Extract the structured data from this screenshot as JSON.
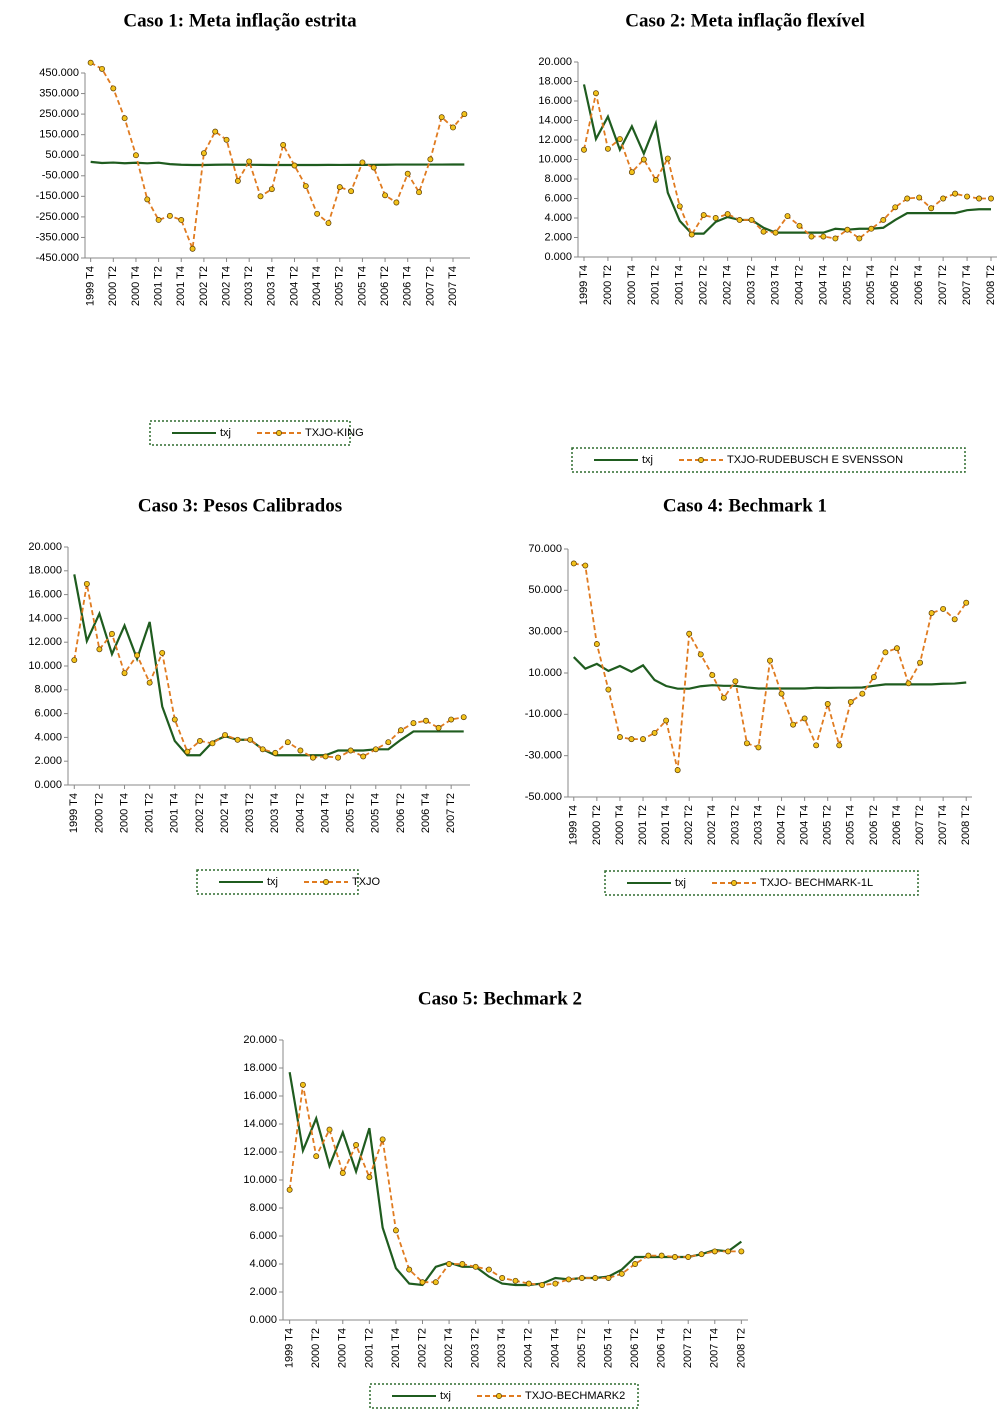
{
  "chart_data": [
    {
      "type": "line",
      "title": "Caso 1: Meta inflação estrita",
      "categories": [
        "1999 T4",
        null,
        "2000 T2",
        null,
        "2000 T4",
        null,
        "2001 T2",
        null,
        "2001 T4",
        null,
        "2002 T2",
        null,
        "2002 T4",
        null,
        "2003 T2",
        null,
        "2003 T4",
        null,
        "2004 T2",
        null,
        "2004 T4",
        null,
        "2005 T2",
        null,
        "2005 T4",
        null,
        "2006 T2",
        null,
        "2006 T4",
        null,
        "2007 T2",
        null,
        "2007 T4",
        null
      ],
      "series": [
        {
          "name": "txj",
          "color": "#1f5c1f",
          "values": [
            17.7,
            12.1,
            14.4,
            11.0,
            13.4,
            10.6,
            13.7,
            6.6,
            3.7,
            2.4,
            2.4,
            3.6,
            4.1,
            3.8,
            3.8,
            3.0,
            2.5,
            2.5,
            2.5,
            2.5,
            2.5,
            2.9,
            2.8,
            2.9,
            2.9,
            3.0,
            3.8,
            4.5,
            4.5,
            4.5,
            4.5,
            4.5,
            4.8,
            4.9
          ]
        },
        {
          "name": "TXJO-KING",
          "color": "#e07b20",
          "values": [
            500,
            470,
            375,
            230,
            50,
            -165,
            -265,
            -245,
            -265,
            -405,
            60,
            165,
            125,
            -75,
            20,
            -150,
            -115,
            100,
            0,
            -100,
            -235,
            -280,
            -105,
            -125,
            15,
            -10,
            -145,
            -180,
            -40,
            -130,
            30,
            235,
            185,
            250
          ]
        }
      ],
      "ylim": [
        -450,
        450
      ],
      "yticks": [
        {
          "value": -450,
          "label": "-450.000"
        },
        {
          "value": -350,
          "label": "-350.000"
        },
        {
          "value": -250,
          "label": "-250.000"
        },
        {
          "value": -150,
          "label": "-150.000"
        },
        {
          "value": -50,
          "label": "-50.000"
        },
        {
          "value": 50,
          "label": "50.000"
        },
        {
          "value": 150,
          "label": "150.000"
        },
        {
          "value": 250,
          "label": "250.000"
        },
        {
          "value": 350,
          "label": "350.000"
        },
        {
          "value": 450,
          "label": "450.000"
        }
      ]
    },
    {
      "type": "line",
      "title": "Caso 2: Meta inflação flexível",
      "categories": [
        "1999 T4",
        null,
        "2000 T2",
        null,
        "2000 T4",
        null,
        "2001 T2",
        null,
        "2001 T4",
        null,
        "2002 T2",
        null,
        "2002 T4",
        null,
        "2003 T2",
        null,
        "2003 T4",
        null,
        "2004 T2",
        null,
        "2004 T4",
        null,
        "2005 T2",
        null,
        "2005 T4",
        null,
        "2006 T2",
        null,
        "2006 T4",
        null,
        "2007 T2",
        null,
        "2007 T4",
        null,
        "2008 T2"
      ],
      "series": [
        {
          "name": "txj",
          "color": "#1f5c1f",
          "values": [
            17.7,
            12.1,
            14.4,
            11.0,
            13.4,
            10.6,
            13.7,
            6.6,
            3.7,
            2.4,
            2.4,
            3.6,
            4.1,
            3.8,
            3.8,
            3.0,
            2.5,
            2.5,
            2.5,
            2.5,
            2.5,
            2.9,
            2.8,
            2.9,
            2.9,
            3.0,
            3.8,
            4.5,
            4.5,
            4.5,
            4.5,
            4.5,
            4.8,
            4.9,
            4.9
          ]
        },
        {
          "name": "TXJO-RUDEBUSCH  E SVENSSON",
          "color": "#e07b20",
          "values": [
            11.0,
            16.8,
            11.1,
            12.1,
            8.7,
            10.0,
            7.9,
            10.1,
            5.2,
            2.3,
            4.3,
            4.0,
            4.4,
            3.8,
            3.8,
            2.6,
            2.5,
            4.2,
            3.2,
            2.1,
            2.1,
            1.9,
            2.8,
            1.9,
            2.9,
            3.8,
            5.1,
            6.0,
            6.1,
            5.0,
            6.0,
            6.5,
            6.2,
            6.0,
            6.0
          ]
        }
      ],
      "ylim": [
        0,
        20
      ],
      "yticks": [
        {
          "value": 0,
          "label": "0.000"
        },
        {
          "value": 2,
          "label": "2.000"
        },
        {
          "value": 4,
          "label": "4.000"
        },
        {
          "value": 6,
          "label": "6.000"
        },
        {
          "value": 8,
          "label": "8.000"
        },
        {
          "value": 10,
          "label": "10.000"
        },
        {
          "value": 12,
          "label": "12.000"
        },
        {
          "value": 14,
          "label": "14.000"
        },
        {
          "value": 16,
          "label": "16.000"
        },
        {
          "value": 18,
          "label": "18.000"
        },
        {
          "value": 20,
          "label": "20.000"
        }
      ]
    },
    {
      "type": "line",
      "title": "Caso 3: Pesos Calibrados",
      "categories": [
        "1999 T4",
        null,
        "2000 T2",
        null,
        "2000 T4",
        null,
        "2001 T2",
        null,
        "2001 T4",
        null,
        "2002 T2",
        null,
        "2002 T4",
        null,
        "2003 T2",
        null,
        "2003 T4",
        null,
        "2004 T2",
        null,
        "2004 T4",
        null,
        "2005 T2",
        null,
        "2005 T4",
        null,
        "2006 T2",
        null,
        "2006 T4",
        null,
        "2007 T2",
        null
      ],
      "series": [
        {
          "name": "txj",
          "color": "#1f5c1f",
          "values": [
            17.7,
            12.1,
            14.4,
            11.0,
            13.4,
            10.6,
            13.7,
            6.6,
            3.7,
            2.5,
            2.5,
            3.6,
            4.1,
            3.8,
            3.8,
            3.0,
            2.5,
            2.5,
            2.5,
            2.5,
            2.5,
            2.9,
            2.9,
            2.9,
            3.0,
            3.0,
            3.8,
            4.5,
            4.5,
            4.5,
            4.5,
            4.5
          ]
        },
        {
          "name": "TXJO",
          "color": "#e07b20",
          "values": [
            10.5,
            16.9,
            11.4,
            12.7,
            9.4,
            10.9,
            8.6,
            11.1,
            5.5,
            2.8,
            3.7,
            3.5,
            4.2,
            3.8,
            3.8,
            3.0,
            2.7,
            3.6,
            2.9,
            2.3,
            2.4,
            2.3,
            2.9,
            2.4,
            3.0,
            3.6,
            4.6,
            5.2,
            5.4,
            4.8,
            5.5,
            5.7
          ]
        }
      ],
      "ylim": [
        0,
        20
      ],
      "yticks": [
        {
          "value": 0,
          "label": "0.000"
        },
        {
          "value": 2,
          "label": "2.000"
        },
        {
          "value": 4,
          "label": "4.000"
        },
        {
          "value": 6,
          "label": "6.000"
        },
        {
          "value": 8,
          "label": "8.000"
        },
        {
          "value": 10,
          "label": "10.000"
        },
        {
          "value": 12,
          "label": "12.000"
        },
        {
          "value": 14,
          "label": "14.000"
        },
        {
          "value": 16,
          "label": "16.000"
        },
        {
          "value": 18,
          "label": "18.000"
        },
        {
          "value": 20,
          "label": "20.000"
        }
      ]
    },
    {
      "type": "line",
      "title": "Caso 4: Bechmark 1",
      "categories": [
        "1999 T4",
        null,
        "2000 T2",
        null,
        "2000 T4",
        null,
        "2001 T2",
        null,
        "2001 T4",
        null,
        "2002 T2",
        null,
        "2002 T4",
        null,
        "2003 T2",
        null,
        "2003 T4",
        null,
        "2004 T2",
        null,
        "2004 T4",
        null,
        "2005 T2",
        null,
        "2005 T4",
        null,
        "2006 T2",
        null,
        "2006 T4",
        null,
        "2007 T2",
        null,
        "2007 T4",
        null,
        "2008 T2"
      ],
      "series": [
        {
          "name": "txj",
          "color": "#1f5c1f",
          "values": [
            17.7,
            12.1,
            14.4,
            11.0,
            13.4,
            10.6,
            13.7,
            6.6,
            3.7,
            2.4,
            2.4,
            3.6,
            4.1,
            3.8,
            3.8,
            3.0,
            2.5,
            2.5,
            2.5,
            2.5,
            2.5,
            2.9,
            2.8,
            2.9,
            2.9,
            3.0,
            3.8,
            4.5,
            4.5,
            4.5,
            4.5,
            4.5,
            4.8,
            4.9,
            5.4
          ]
        },
        {
          "name": "TXJO- BECHMARK-1L",
          "color": "#e07b20",
          "values": [
            63,
            62,
            24,
            2,
            -21,
            -22,
            -22,
            -19,
            -13,
            -37,
            29,
            19,
            9,
            -2,
            6,
            -24,
            -26,
            16,
            0,
            -15,
            -12,
            -25,
            -5,
            -25,
            -4,
            0,
            8,
            20,
            22,
            5,
            15,
            39,
            41,
            36,
            44
          ]
        }
      ],
      "ylim": [
        -50,
        70
      ],
      "yticks": [
        {
          "value": -50,
          "label": "-50.000"
        },
        {
          "value": -30,
          "label": "-30.000"
        },
        {
          "value": -10,
          "label": "-10.000"
        },
        {
          "value": 10,
          "label": "10.000"
        },
        {
          "value": 30,
          "label": "30.000"
        },
        {
          "value": 50,
          "label": "50.000"
        },
        {
          "value": 70,
          "label": "70.000"
        }
      ]
    },
    {
      "type": "line",
      "title": "Caso 5: Bechmark 2",
      "categories": [
        "1999 T4",
        null,
        "2000 T2",
        null,
        "2000 T4",
        null,
        "2001 T2",
        null,
        "2001 T4",
        null,
        "2002 T2",
        null,
        "2002 T4",
        null,
        "2003 T2",
        null,
        "2003 T4",
        null,
        "2004 T2",
        null,
        "2004 T4",
        null,
        "2005 T2",
        null,
        "2005 T4",
        null,
        "2006 T2",
        null,
        "2006 T4",
        null,
        "2007 T2",
        null,
        "2007 T4",
        null,
        "2008 T2"
      ],
      "series": [
        {
          "name": "txj",
          "color": "#1f5c1f",
          "values": [
            17.7,
            12.1,
            14.4,
            11.0,
            13.4,
            10.6,
            13.7,
            6.6,
            3.7,
            2.6,
            2.5,
            3.8,
            4.1,
            3.8,
            3.8,
            3.1,
            2.6,
            2.5,
            2.5,
            2.6,
            3.0,
            2.9,
            3.0,
            3.0,
            3.1,
            3.6,
            4.5,
            4.5,
            4.5,
            4.5,
            4.5,
            4.7,
            5.0,
            4.9,
            5.6
          ]
        },
        {
          "name": "TXJO-BECHMARK2",
          "color": "#e07b20",
          "values": [
            9.3,
            16.8,
            11.7,
            13.6,
            10.5,
            12.5,
            10.2,
            12.9,
            6.4,
            3.6,
            2.7,
            2.7,
            4.0,
            4.0,
            3.8,
            3.6,
            3.0,
            2.8,
            2.6,
            2.5,
            2.6,
            2.9,
            3.0,
            3.0,
            3.0,
            3.3,
            4.0,
            4.6,
            4.6,
            4.5,
            4.5,
            4.7,
            4.9,
            4.9,
            4.9
          ]
        }
      ],
      "ylim": [
        0,
        20
      ],
      "yticks": [
        {
          "value": 0,
          "label": "0.000"
        },
        {
          "value": 2,
          "label": "2.000"
        },
        {
          "value": 4,
          "label": "4.000"
        },
        {
          "value": 6,
          "label": "6.000"
        },
        {
          "value": 8,
          "label": "8.000"
        },
        {
          "value": 10,
          "label": "10.000"
        },
        {
          "value": 12,
          "label": "12.000"
        },
        {
          "value": 14,
          "label": "14.000"
        },
        {
          "value": 16,
          "label": "16.000"
        },
        {
          "value": 18,
          "label": "18.000"
        },
        {
          "value": 20,
          "label": "20.000"
        }
      ]
    }
  ]
}
